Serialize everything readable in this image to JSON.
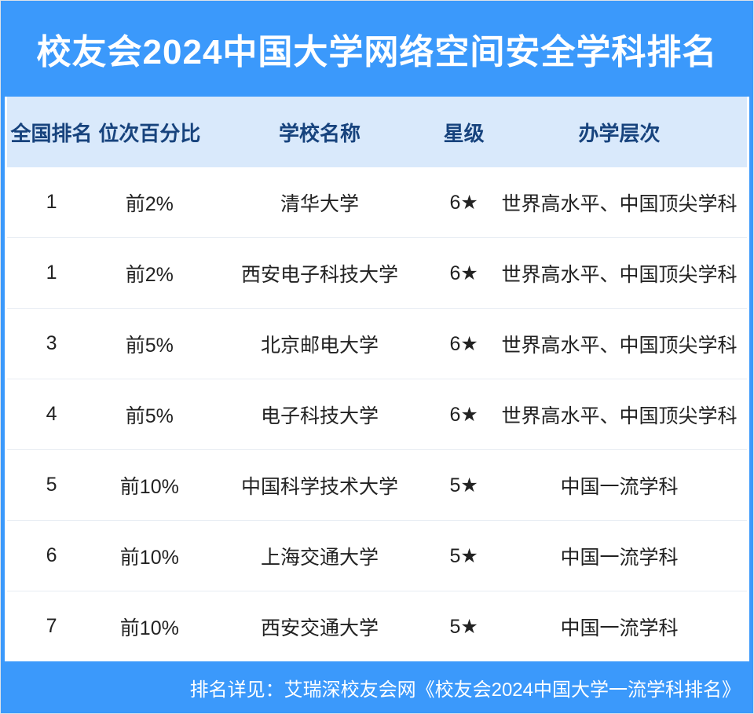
{
  "page_title": "校友会2024中国大学网络空间安全学科排名",
  "colors": {
    "primary_blue": "#3b99fb",
    "table_header_bg": "#d9e9fb",
    "table_header_text": "#17437d",
    "body_text": "#222222",
    "divider": "#e8edf3",
    "title_text": "#ffffff"
  },
  "chart_data": {
    "type": "table",
    "title": "校友会2024中国大学网络空间安全学科排名",
    "columns": [
      "全国排名",
      "位次百分比",
      "学校名称",
      "星级",
      "办学层次"
    ],
    "rows": [
      [
        "1",
        "前2%",
        "清华大学",
        "6★",
        "世界高水平、中国顶尖学科"
      ],
      [
        "1",
        "前2%",
        "西安电子科技大学",
        "6★",
        "世界高水平、中国顶尖学科"
      ],
      [
        "3",
        "前5%",
        "北京邮电大学",
        "6★",
        "世界高水平、中国顶尖学科"
      ],
      [
        "4",
        "前5%",
        "电子科技大学",
        "6★",
        "世界高水平、中国顶尖学科"
      ],
      [
        "5",
        "前10%",
        "中国科学技术大学",
        "5★",
        "中国一流学科"
      ],
      [
        "6",
        "前10%",
        "上海交通大学",
        "5★",
        "中国一流学科"
      ],
      [
        "7",
        "前10%",
        "西安交通大学",
        "5★",
        "中国一流学科"
      ]
    ]
  },
  "footer": {
    "note": "排名详见：艾瑞深校友会网《校友会2024中国大学一流学科排名》"
  }
}
